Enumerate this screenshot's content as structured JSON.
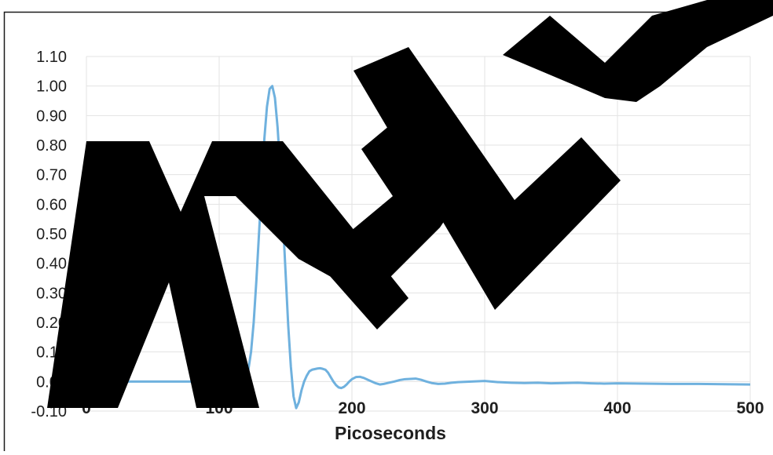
{
  "colors": {
    "series": "#6fb1de",
    "grid": "#e3e3e3",
    "frame": "#1a1a1a",
    "watermark": "#000000"
  },
  "watermark": {
    "text": "SAMPLE"
  },
  "chart_data": {
    "type": "line",
    "title": "",
    "xlabel": "Picoseconds",
    "ylabel": "",
    "xlim": [
      0,
      500
    ],
    "ylim": [
      -0.1,
      1.1
    ],
    "x_ticks": [
      0,
      100,
      200,
      300,
      400,
      500
    ],
    "x_tick_labels": [
      "0",
      "100",
      "200",
      "300",
      "400",
      "500"
    ],
    "y_ticks": [
      -0.1,
      0.0,
      0.1,
      0.2,
      0.3,
      0.4,
      0.5,
      0.6,
      0.7,
      0.8,
      0.9,
      1.0,
      1.1
    ],
    "y_tick_labels": [
      "-0.10",
      "0.00",
      "0.10",
      "0.20",
      "0.30",
      "0.40",
      "0.50",
      "0.60",
      "0.70",
      "0.80",
      "0.90",
      "1.00",
      "1.10"
    ],
    "grid": true,
    "legend": "none",
    "series": [
      {
        "x": [
          0,
          20,
          40,
          60,
          80,
          100,
          115,
          118,
          120,
          122,
          124,
          126,
          128,
          130,
          132,
          134,
          136,
          138,
          140,
          142,
          144,
          146,
          148,
          150,
          152,
          154,
          156,
          158,
          160,
          162,
          164,
          166,
          168,
          170,
          172,
          174,
          176,
          178,
          180,
          182,
          184,
          186,
          188,
          190,
          192,
          194,
          196,
          198,
          200,
          203,
          206,
          209,
          212,
          215,
          218,
          221,
          224,
          228,
          232,
          236,
          240,
          244,
          248,
          252,
          256,
          260,
          265,
          270,
          275,
          280,
          290,
          300,
          310,
          320,
          330,
          340,
          350,
          360,
          370,
          380,
          390,
          400,
          420,
          440,
          460,
          480,
          500
        ],
        "y": [
          0.0,
          0.0,
          0.0,
          0.0,
          0.0,
          0.0,
          0.0,
          0.0,
          0.01,
          0.04,
          0.1,
          0.2,
          0.34,
          0.5,
          0.66,
          0.82,
          0.93,
          0.99,
          1.0,
          0.96,
          0.86,
          0.72,
          0.55,
          0.37,
          0.19,
          0.05,
          -0.05,
          -0.09,
          -0.07,
          -0.03,
          0.0,
          0.02,
          0.035,
          0.04,
          0.042,
          0.044,
          0.045,
          0.043,
          0.04,
          0.03,
          0.015,
          0.0,
          -0.012,
          -0.02,
          -0.022,
          -0.018,
          -0.01,
          0.0,
          0.008,
          0.015,
          0.016,
          0.012,
          0.006,
          0.0,
          -0.006,
          -0.01,
          -0.008,
          -0.004,
          0.0,
          0.005,
          0.008,
          0.009,
          0.01,
          0.006,
          0.0,
          -0.005,
          -0.008,
          -0.007,
          -0.004,
          -0.002,
          0.0,
          0.002,
          -0.002,
          -0.004,
          -0.005,
          -0.004,
          -0.006,
          -0.005,
          -0.004,
          -0.006,
          -0.007,
          -0.006,
          -0.007,
          -0.008,
          -0.008,
          -0.009,
          -0.01
        ]
      }
    ]
  }
}
